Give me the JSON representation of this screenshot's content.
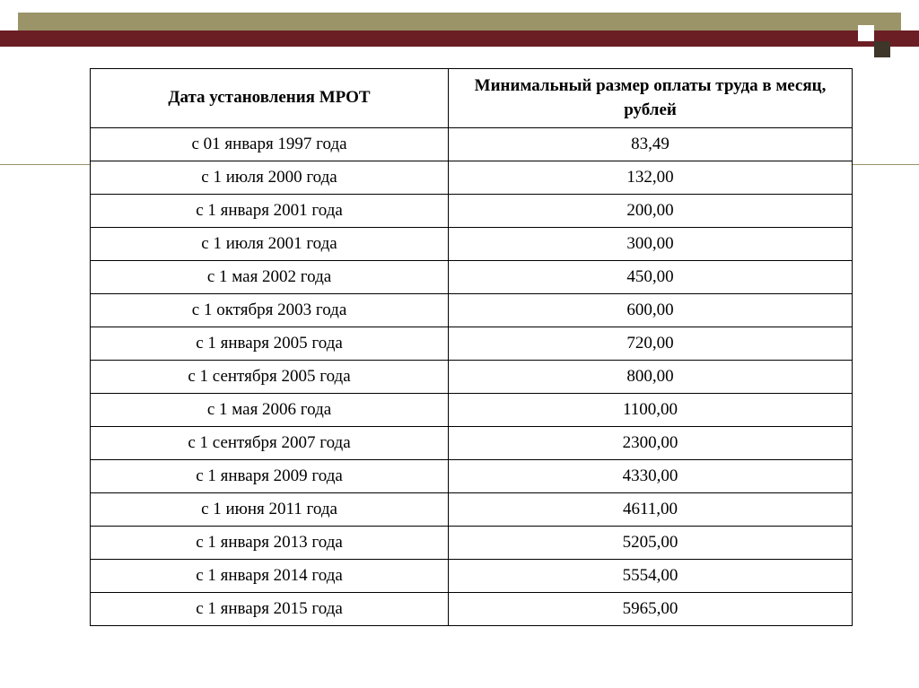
{
  "table": {
    "header_col1": "Дата установления МРОТ",
    "header_col2": "Минимальный размер оплаты труда в месяц, рублей",
    "rows": [
      {
        "date": "с 01 января 1997 года",
        "value": "83,49"
      },
      {
        "date": "с 1 июля 2000 года",
        "value": "132,00"
      },
      {
        "date": "с 1 января 2001 года",
        "value": "200,00"
      },
      {
        "date": "с 1 июля 2001 года",
        "value": "300,00"
      },
      {
        "date": "с 1 мая 2002 года",
        "value": "450,00"
      },
      {
        "date": "с 1 октября 2003 года",
        "value": "600,00"
      },
      {
        "date": "с 1 января 2005 года",
        "value": "720,00"
      },
      {
        "date": "с 1 сентября 2005 года",
        "value": "800,00"
      },
      {
        "date": "с 1 мая 2006 года",
        "value": "1100,00"
      },
      {
        "date": "с 1 сентября 2007 года",
        "value": "2300,00"
      },
      {
        "date": "с 1 января 2009 года",
        "value": "4330,00"
      },
      {
        "date": "с 1 июня 2011 года",
        "value": "4611,00"
      },
      {
        "date": "с 1 января 2013 года",
        "value": "5205,00"
      },
      {
        "date": "с 1 января 2014 года",
        "value": "5554,00"
      },
      {
        "date": "с 1 января 2015 года",
        "value": "5965,00"
      }
    ]
  },
  "styling": {
    "olive_color": "#9a9468",
    "maroon_color": "#6b1e24",
    "dark_square_color": "#3d3629",
    "border_color": "#000000",
    "text_color": "#000000",
    "background_color": "#ffffff",
    "header_font_weight": "bold",
    "body_font_weight": "normal",
    "font_size": 19,
    "font_family": "Times New Roman"
  }
}
